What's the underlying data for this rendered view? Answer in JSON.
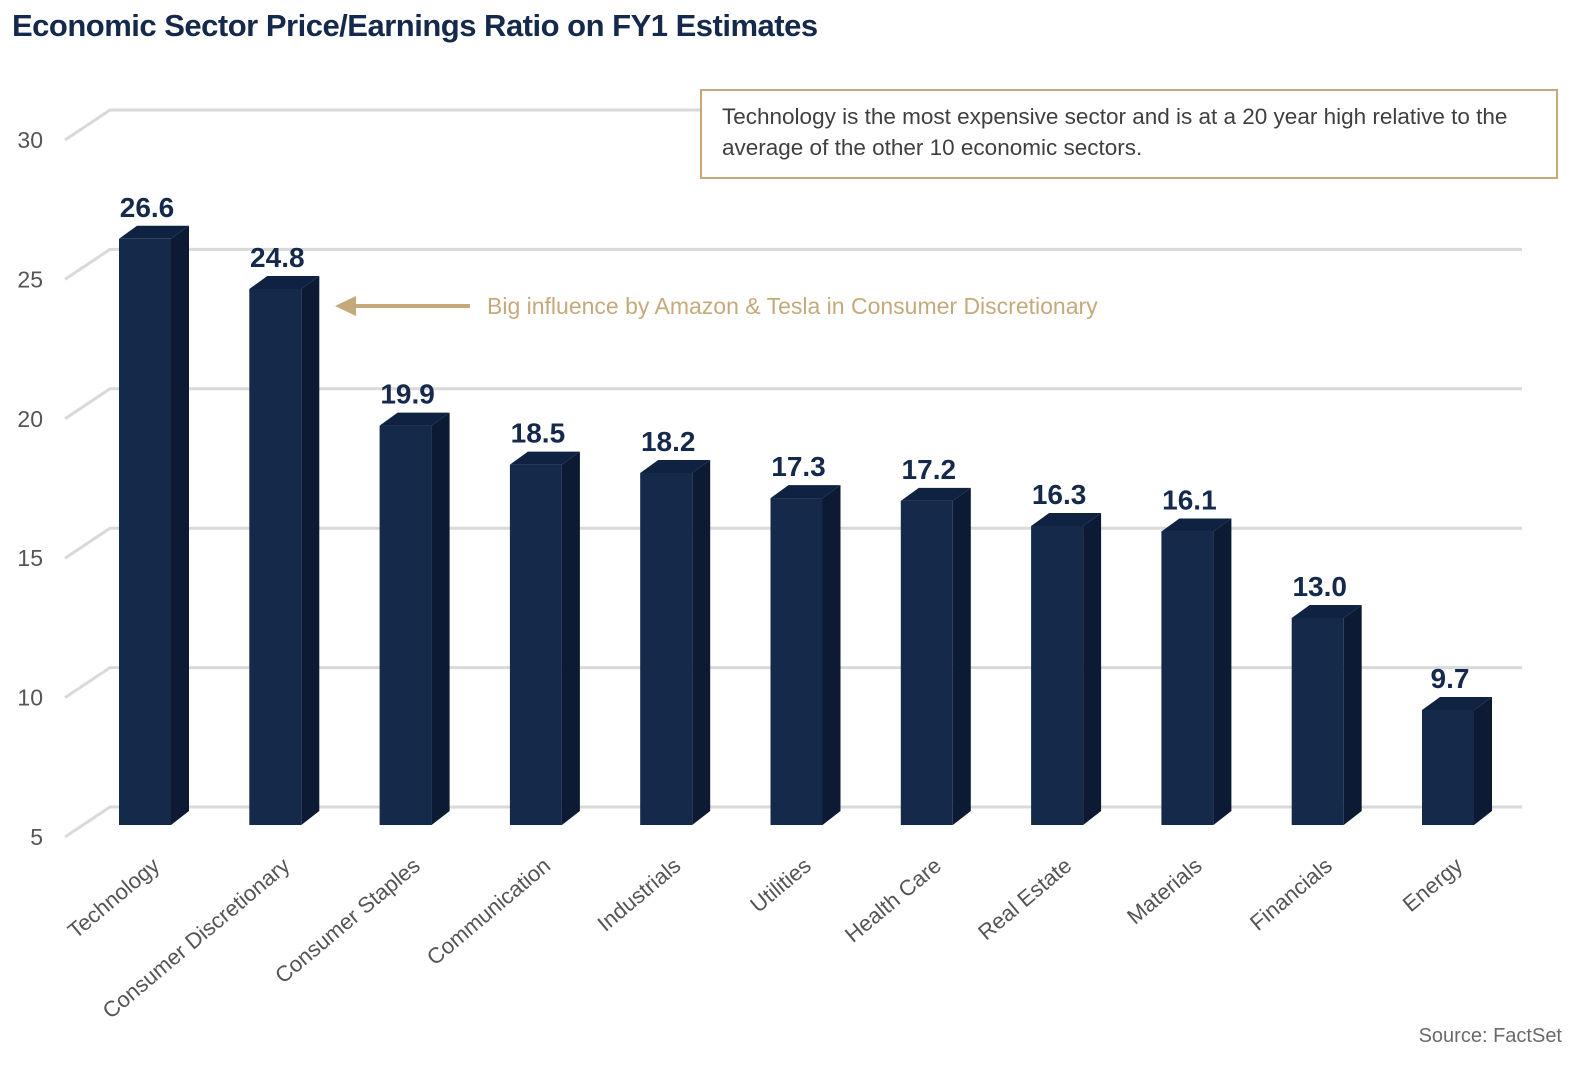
{
  "chart_data": {
    "type": "bar",
    "title": "Economic Sector Price/Earnings Ratio on FY1 Estimates",
    "categories": [
      "Technology",
      "Consumer Discretionary",
      "Consumer Staples",
      "Communication",
      "Industrials",
      "Utilities",
      "Health Care",
      "Real Estate",
      "Materials",
      "Financials",
      "Energy"
    ],
    "values": [
      26.6,
      24.8,
      19.9,
      18.5,
      18.2,
      17.3,
      17.2,
      16.3,
      16.1,
      13.0,
      9.7
    ],
    "value_labels": [
      "26.6",
      "24.8",
      "19.9",
      "18.5",
      "18.2",
      "17.3",
      "17.2",
      "16.3",
      "16.1",
      "13.0",
      "9.7"
    ],
    "ylim": [
      5,
      30
    ],
    "yticks": [
      "5",
      "10",
      "15",
      "20",
      "25",
      "30"
    ],
    "grid": true,
    "style": "3d-bars",
    "bar_color": "#15294b",
    "annotations": [
      {
        "text": "Big influence by Amazon & Tesla in Consumer Discretionary",
        "target": "Consumer Discretionary",
        "arrow": true,
        "color": "#c6a97b"
      }
    ],
    "callout": "Technology is the most expensive sector and is at a 20 year high relative to the average of the other 10 economic sectors.",
    "source": "Source: FactSet"
  }
}
